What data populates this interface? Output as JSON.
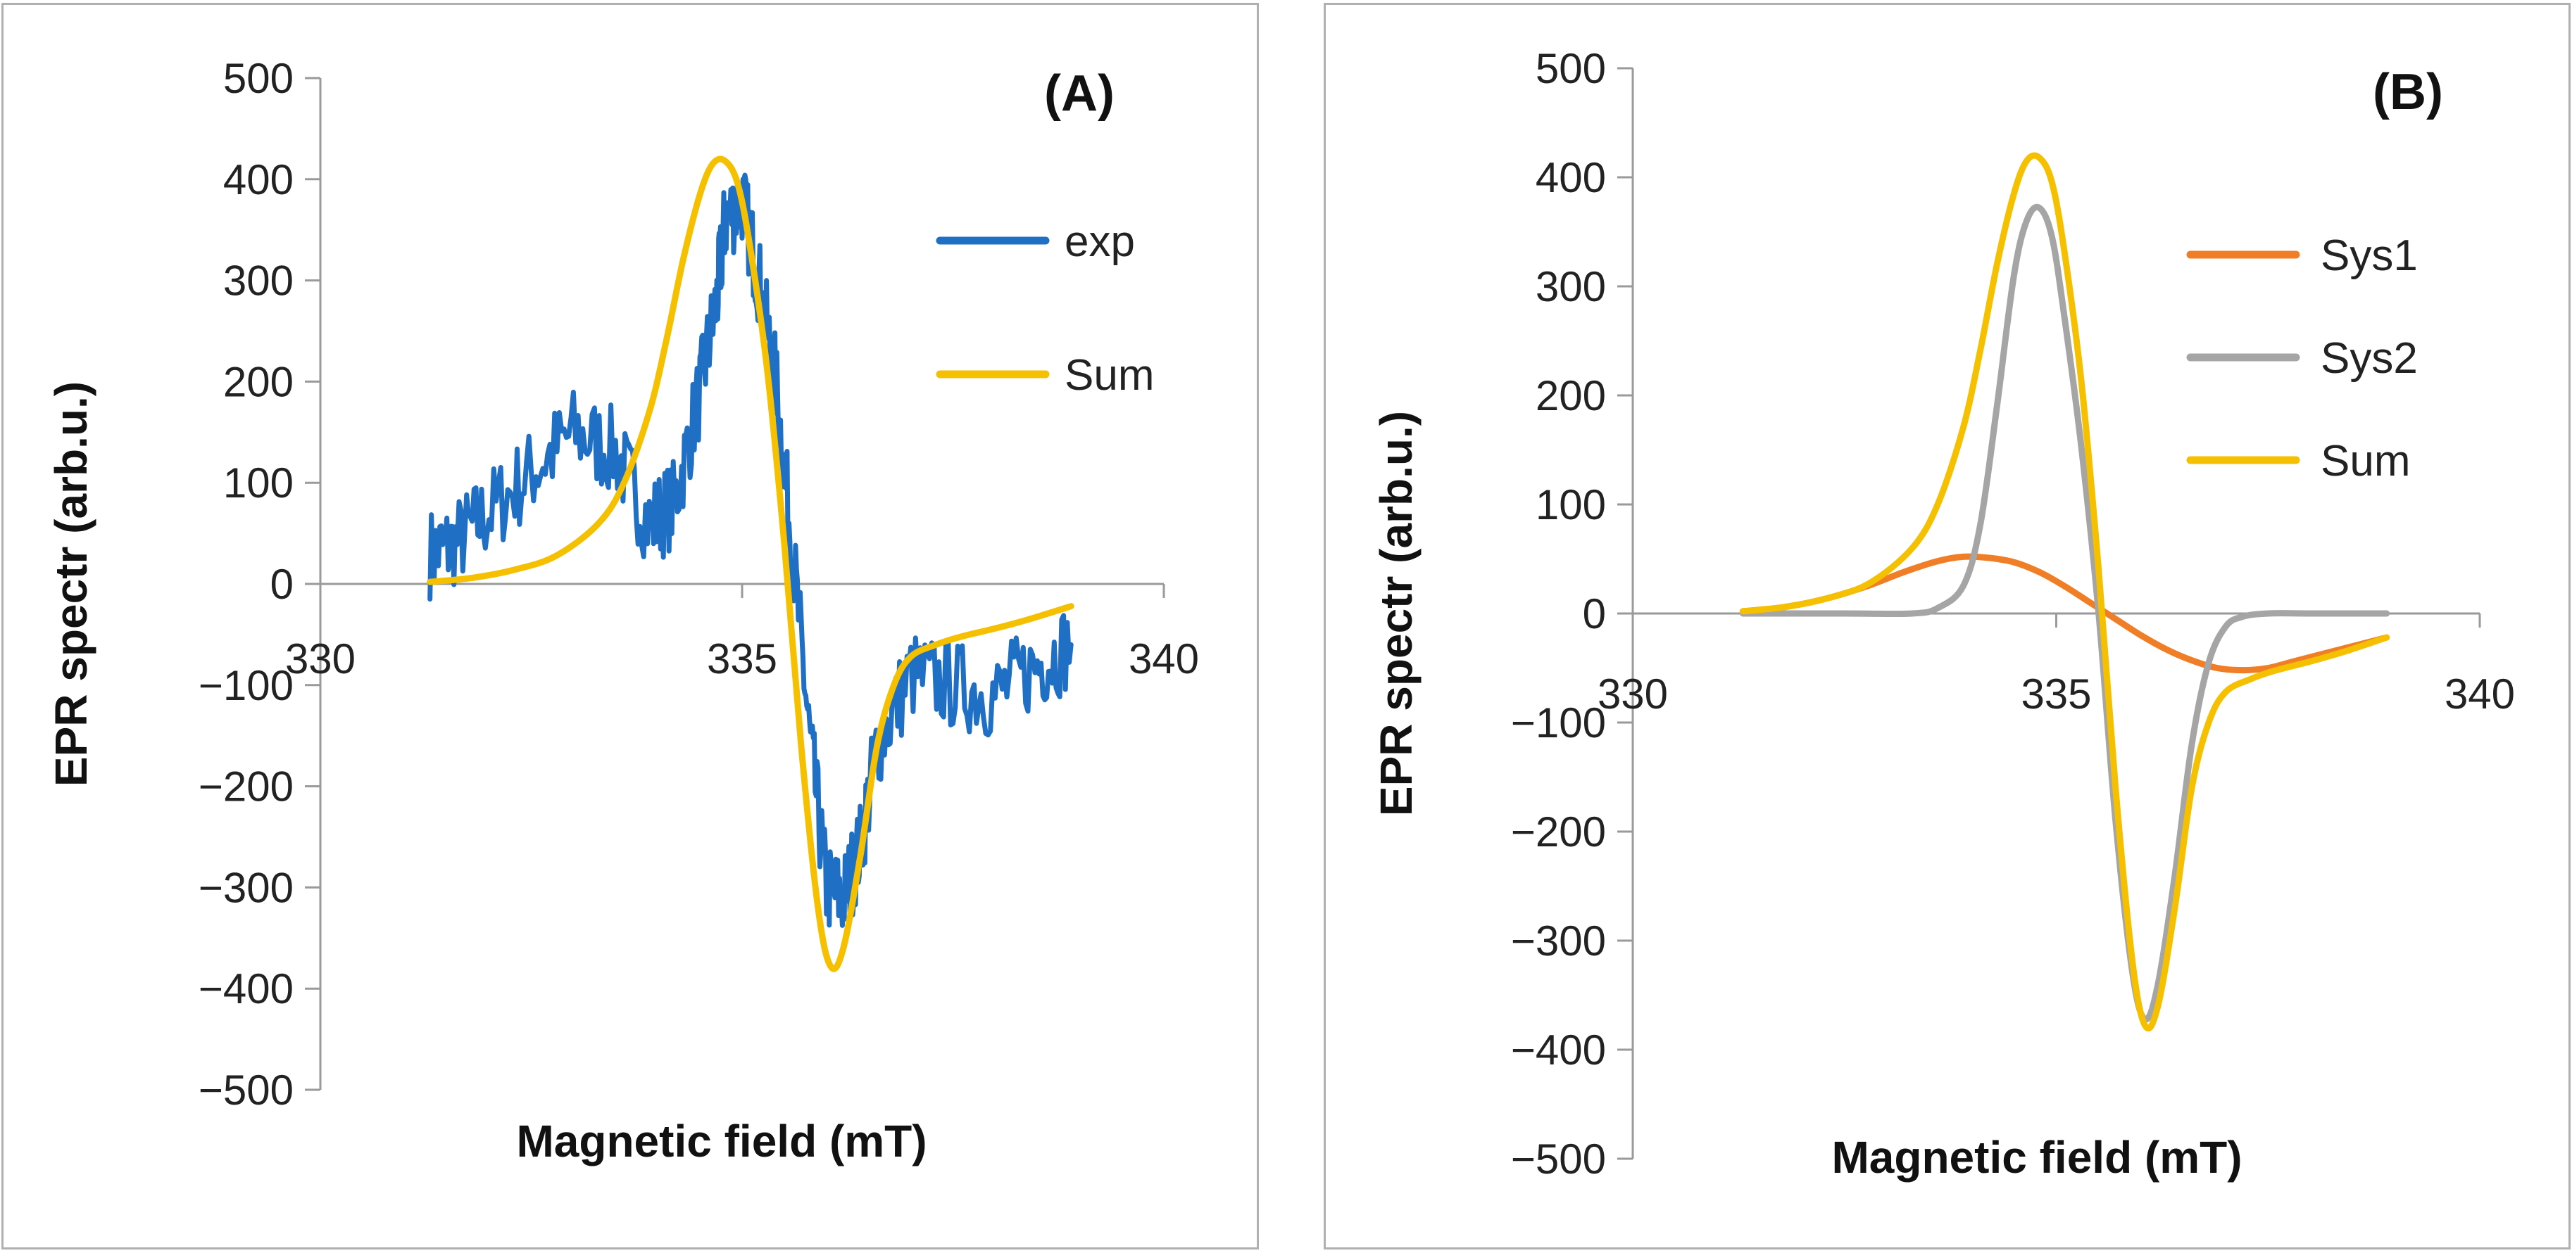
{
  "chart_data": [
    {
      "type": "line",
      "panel_label": "(A)",
      "xlabel": "Magnetic field (mT)",
      "ylabel": "EPR spectr (arb.u.)",
      "xlim": [
        330,
        340
      ],
      "ylim": [
        -500,
        500
      ],
      "xticks": [
        330,
        335,
        340
      ],
      "yticks": [
        500,
        400,
        300,
        200,
        100,
        0,
        -100,
        -200,
        -300,
        -400,
        -500
      ],
      "x_axis_crosses_at": 0,
      "legend_position": "top-right",
      "series": [
        {
          "name": "exp",
          "color": "#1f6fc5",
          "noisy": true,
          "x": [
            331.3,
            331.6,
            332.0,
            332.5,
            333.0,
            333.5,
            333.9,
            334.2,
            334.5,
            334.7,
            334.8,
            335.0,
            335.2,
            335.4,
            335.6,
            335.8,
            336.0,
            336.2,
            336.4,
            336.6,
            337.0,
            337.5,
            338.0,
            338.5,
            338.9
          ],
          "y": [
            30,
            40,
            70,
            110,
            150,
            130,
            60,
            80,
            190,
            280,
            360,
            380,
            300,
            200,
            30,
            -150,
            -300,
            -310,
            -260,
            -160,
            -90,
            -100,
            -110,
            -80,
            -60
          ]
        },
        {
          "name": "Sum",
          "color": "#f5c000",
          "x": [
            331.3,
            331.8,
            332.3,
            332.8,
            333.3,
            333.6,
            333.9,
            334.1,
            334.3,
            334.5,
            334.65,
            334.8,
            334.95,
            335.1,
            335.3,
            335.5,
            335.7,
            335.9,
            336.05,
            336.2,
            336.4,
            336.6,
            336.8,
            337.0,
            337.3,
            337.6,
            338.0,
            338.4,
            338.9
          ],
          "y": [
            2,
            6,
            14,
            28,
            60,
            100,
            170,
            240,
            320,
            385,
            415,
            418,
            395,
            330,
            210,
            40,
            -160,
            -320,
            -378,
            -360,
            -270,
            -160,
            -100,
            -72,
            -60,
            -52,
            -44,
            -35,
            -22
          ]
        }
      ]
    },
    {
      "type": "line",
      "panel_label": "(B)",
      "xlabel": "Magnetic field (mT)",
      "ylabel": "EPR spectr (arb.u.)",
      "xlim": [
        330,
        340
      ],
      "ylim": [
        -500,
        500
      ],
      "xticks": [
        330,
        335,
        340
      ],
      "yticks": [
        500,
        400,
        300,
        200,
        100,
        0,
        -100,
        -200,
        -300,
        -400,
        -500
      ],
      "x_axis_crosses_at": 0,
      "legend_position": "top-right",
      "series": [
        {
          "name": "Sys1",
          "color": "#f07e26",
          "x": [
            331.3,
            331.8,
            332.3,
            332.8,
            333.2,
            333.6,
            333.9,
            334.2,
            334.5,
            334.8,
            335.1,
            335.4,
            335.7,
            336.0,
            336.3,
            336.6,
            336.9,
            337.2,
            337.5,
            337.8,
            338.1,
            338.4,
            338.7,
            338.9
          ],
          "y": [
            2,
            6,
            14,
            26,
            38,
            48,
            52,
            51,
            47,
            38,
            25,
            10,
            -5,
            -20,
            -33,
            -43,
            -50,
            -52,
            -50,
            -44,
            -38,
            -32,
            -26,
            -22
          ]
        },
        {
          "name": "Sys2",
          "color": "#a5a5a5",
          "x": [
            331.3,
            332.5,
            333.3,
            333.6,
            333.9,
            334.1,
            334.3,
            334.5,
            334.65,
            334.8,
            334.95,
            335.1,
            335.3,
            335.5,
            335.7,
            335.9,
            336.05,
            336.2,
            336.4,
            336.6,
            336.8,
            337.0,
            337.2,
            337.5,
            338.0,
            338.9
          ],
          "y": [
            0,
            0,
            0,
            5,
            25,
            80,
            190,
            310,
            360,
            372,
            345,
            270,
            150,
            0,
            -190,
            -330,
            -372,
            -340,
            -240,
            -120,
            -45,
            -12,
            -3,
            0,
            0,
            0
          ]
        },
        {
          "name": "Sum",
          "color": "#f5c000",
          "x": [
            331.3,
            331.8,
            332.3,
            332.8,
            333.3,
            333.6,
            333.9,
            334.1,
            334.3,
            334.5,
            334.65,
            334.8,
            334.95,
            335.1,
            335.3,
            335.5,
            335.7,
            335.9,
            336.05,
            336.2,
            336.4,
            336.6,
            336.8,
            337.0,
            337.3,
            337.6,
            338.0,
            338.4,
            338.9
          ],
          "y": [
            2,
            6,
            14,
            28,
            60,
            100,
            170,
            240,
            320,
            385,
            415,
            418,
            395,
            330,
            210,
            40,
            -160,
            -320,
            -378,
            -360,
            -270,
            -160,
            -100,
            -72,
            -60,
            -52,
            -44,
            -35,
            -22
          ]
        }
      ]
    }
  ]
}
